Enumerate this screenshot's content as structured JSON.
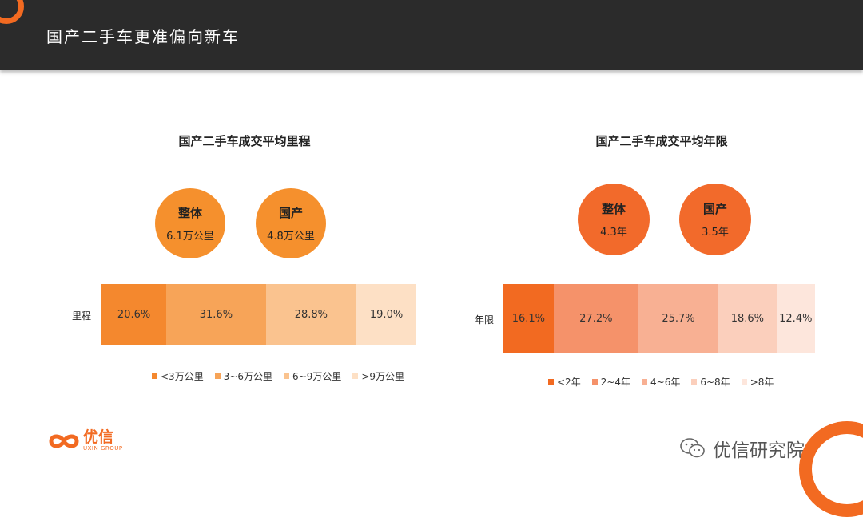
{
  "header": {
    "title": "国产二手车更准偏向新车"
  },
  "colors": {
    "accent": "#f26a21"
  },
  "chart_data": [
    {
      "type": "bar",
      "stacked": "100%",
      "orientation": "horizontal",
      "title": "国产二手车成交平均里程",
      "categories": [
        "里程"
      ],
      "series": [
        {
          "name": "<3万公里",
          "values": [
            20.6
          ],
          "label": "20.6%",
          "color": "#f4882e"
        },
        {
          "name": "3~6万公里",
          "values": [
            31.6
          ],
          "label": "31.6%",
          "color": "#f7a458"
        },
        {
          "name": "6~9万公里",
          "values": [
            28.8
          ],
          "label": "28.8%",
          "color": "#fac38f"
        },
        {
          "name": ">9万公里",
          "values": [
            19.0
          ],
          "label": "19.0%",
          "color": "#fde0c5"
        }
      ],
      "legend_position": "bottom",
      "circles": [
        {
          "title": "整体",
          "value": "6.1万公里",
          "color": "#f5902d"
        },
        {
          "title": "国产",
          "value": "4.8万公里",
          "color": "#f5902d"
        }
      ]
    },
    {
      "type": "bar",
      "stacked": "100%",
      "orientation": "horizontal",
      "title": "国产二手车成交平均年限",
      "categories": [
        "年限"
      ],
      "series": [
        {
          "name": "<2年",
          "values": [
            16.1
          ],
          "label": "16.1%",
          "color": "#f26a21"
        },
        {
          "name": "2~4年",
          "values": [
            27.2
          ],
          "label": "27.2%",
          "color": "#f5926a"
        },
        {
          "name": "4~6年",
          "values": [
            25.7
          ],
          "label": "25.7%",
          "color": "#f8b093"
        },
        {
          "name": "6~8年",
          "values": [
            18.6
          ],
          "label": "18.6%",
          "color": "#fbcfbc"
        },
        {
          "name": ">8年",
          "values": [
            12.4
          ],
          "label": "12.4%",
          "color": "#fde6dc"
        }
      ],
      "legend_position": "bottom",
      "circles": [
        {
          "title": "整体",
          "value": "4.3年",
          "color": "#f26a2b"
        },
        {
          "title": "国产",
          "value": "3.5年",
          "color": "#f26a2b"
        }
      ]
    }
  ],
  "footer": {
    "logo_text": "优信",
    "logo_subtext": "UXIN GROUP",
    "watermark": "优信研究院",
    "watermark_icon": "wechat-icon"
  }
}
